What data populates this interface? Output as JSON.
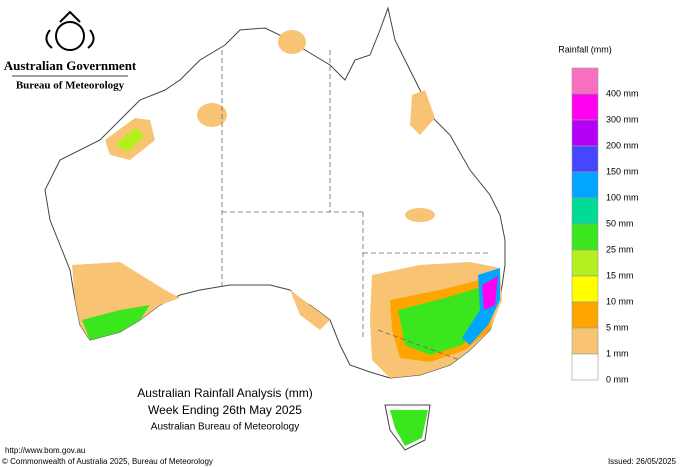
{
  "header": {
    "government": "Australian Government",
    "bureau": "Bureau of Meteorology"
  },
  "legend": {
    "title": "Rainfall (mm)",
    "items": [
      {
        "label": null,
        "color": "#f76fbf"
      },
      {
        "label": "400 mm",
        "color": "#ff00f0"
      },
      {
        "label": "300 mm",
        "color": "#b400f6"
      },
      {
        "label": "200 mm",
        "color": "#4646ff"
      },
      {
        "label": "150 mm",
        "color": "#00a6ff"
      },
      {
        "label": "100 mm",
        "color": "#00dc96"
      },
      {
        "label": "50 mm",
        "color": "#3ce61e"
      },
      {
        "label": "25 mm",
        "color": "#b4f01e"
      },
      {
        "label": "15 mm",
        "color": "#ffff00"
      },
      {
        "label": "10 mm",
        "color": "#ffa500"
      },
      {
        "label": "5 mm",
        "color": "#f8c373"
      },
      {
        "label": "1 mm",
        "color": "#ffffff"
      }
    ],
    "bottom_label": "0 mm"
  },
  "title": {
    "line1": "Australian Rainfall Analysis (mm)",
    "line2": "Week Ending 26th May 2025",
    "line3": "Australian Bureau of Meteorology"
  },
  "footer": {
    "url": "http://www.bom.gov.au",
    "copyright": "© Commonwealth of Australia 2025, Bureau of Meteorology",
    "issued": "Issued: 26/05/2025"
  }
}
